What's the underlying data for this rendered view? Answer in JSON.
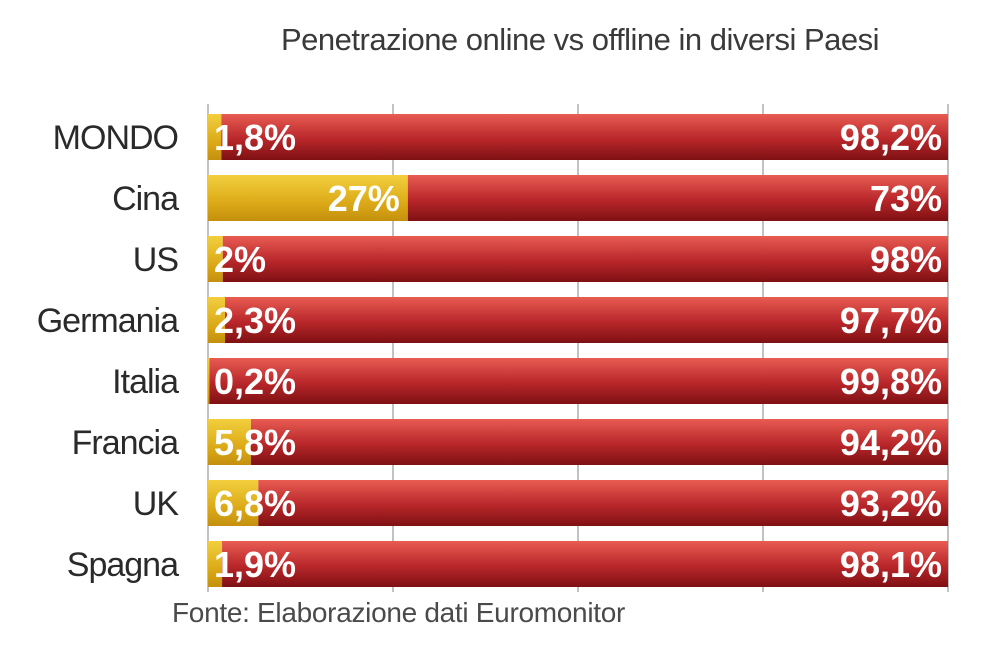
{
  "chart_data": {
    "type": "bar",
    "stacked": true,
    "orientation": "horizontal",
    "title": "Penetrazione online vs offline in diversi Paesi",
    "source": "Fonte: Elaborazione dati Euromonitor",
    "categories": [
      "MONDO",
      "Cina",
      "US",
      "Germania",
      "Italia",
      "Francia",
      "UK",
      "Spagna"
    ],
    "series": [
      {
        "color": "#e3b21f",
        "values": [
          1.8,
          27,
          2,
          2.3,
          0.2,
          5.8,
          6.8,
          1.9
        ],
        "labels": [
          "1,8%",
          "27%",
          "2%",
          "2,3%",
          "0,2%",
          "5,8%",
          "6,8%",
          "1,9%"
        ]
      },
      {
        "color": "#b3262a",
        "values": [
          98.2,
          73,
          98,
          97.7,
          99.8,
          94.2,
          93.2,
          98.1
        ],
        "labels": [
          "98,2%",
          "73%",
          "98%",
          "97,7%",
          "99,8%",
          "94,2%",
          "93,2%",
          "98,1%"
        ]
      }
    ],
    "xlim": [
      0,
      100
    ],
    "grid": true
  }
}
